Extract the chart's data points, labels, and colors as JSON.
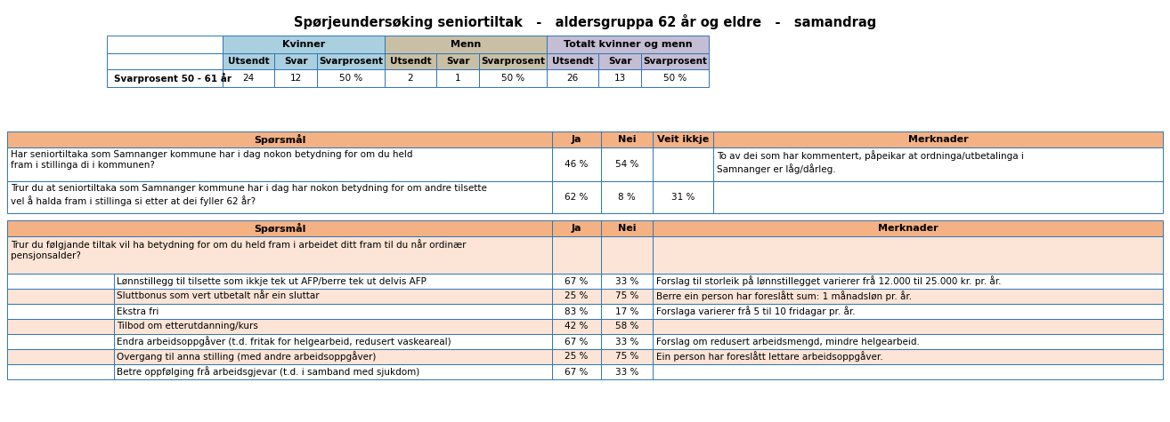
{
  "title": "Spørjeundersøking seniortiltak   -   aldersgruppa 62 år og eldre   -   samandrag",
  "table1": {
    "kvinner_color": "#aacfdf",
    "menn_color": "#c9bfa5",
    "totalt_color": "#c5bdd4",
    "data_row": [
      "Svarprosent 50 - 61 år",
      "24",
      "12",
      "50 %",
      "2",
      "1",
      "50 %",
      "26",
      "13",
      "50 %"
    ]
  },
  "table2": {
    "header": [
      "Spørsmål",
      "Ja",
      "Nei",
      "Veit ikkje",
      "Merknader"
    ],
    "rows": [
      {
        "sporsmal": "Har seniortiltaka som Samnanger kommune har i dag nokon betydning for om du held\nfram i stillinga di i kommunen?",
        "ja": "46 %",
        "nei": "54 %",
        "veit_ikkje": "",
        "merknader": "To av dei som har kommentert, påpeikar at ordninga/utbetalinga i\nSamnanger er låg/dårleg."
      },
      {
        "sporsmal": "Trur du at seniortiltaka som Samnanger kommune har i dag har nokon betydning for om andre tilsette\nvel å halda fram i stillinga si etter at dei fyller 62 år?",
        "ja": "62 %",
        "nei": "8 %",
        "veit_ikkje": "31 %",
        "merknader": ""
      }
    ]
  },
  "table3": {
    "header": [
      "Spørsmål",
      "Ja",
      "Nei",
      "Merknader"
    ],
    "main_question": "Trur du følgjande tiltak vil ha betydning for om du held fram i arbeidet ditt fram til du når ordinær\npensjonsalder?",
    "rows": [
      {
        "sporsmal": "Lønnstillegg til tilsette som ikkje tek ut AFP/berre tek ut delvis AFP",
        "ja": "67 %",
        "nei": "33 %",
        "merknader": "Forslag til storleik på lønnstillegget varierer frå 12.000 til 25.000 kr. pr. år."
      },
      {
        "sporsmal": "Sluttbonus som vert utbetalt når ein sluttar",
        "ja": "25 %",
        "nei": "75 %",
        "merknader": "Berre ein person har foreslått sum: 1 månadsløn pr. år."
      },
      {
        "sporsmal": "Ekstra fri",
        "ja": "83 %",
        "nei": "17 %",
        "merknader": "Forslaga varierer frå 5 til 10 fridagar pr. år."
      },
      {
        "sporsmal": "Tilbod om etterutdanning/kurs",
        "ja": "42 %",
        "nei": "58 %",
        "merknader": ""
      },
      {
        "sporsmal": "Endra arbeidsoppgåver (t.d. fritak for helgearbeid, redusert vaskeareal)",
        "ja": "67 %",
        "nei": "33 %",
        "merknader": "Forslag om redusert arbeidsmengd, mindre helgearbeid."
      },
      {
        "sporsmal": "Overgang til anna stilling (med andre arbeidsoppgåver)",
        "ja": "25 %",
        "nei": "75 %",
        "merknader": "Ein person har foreslått lettare arbeidsoppgåver."
      },
      {
        "sporsmal": "Betre oppfølging frå arbeidsgjevar (t.d. i samband med sjukdom)",
        "ja": "67 %",
        "nei": "33 %",
        "merknader": ""
      }
    ]
  },
  "orange_header": "#f4b183",
  "light_orange": "#fce4d6",
  "blue_border": "#2e75b6",
  "white": "#ffffff",
  "black": "#000000"
}
